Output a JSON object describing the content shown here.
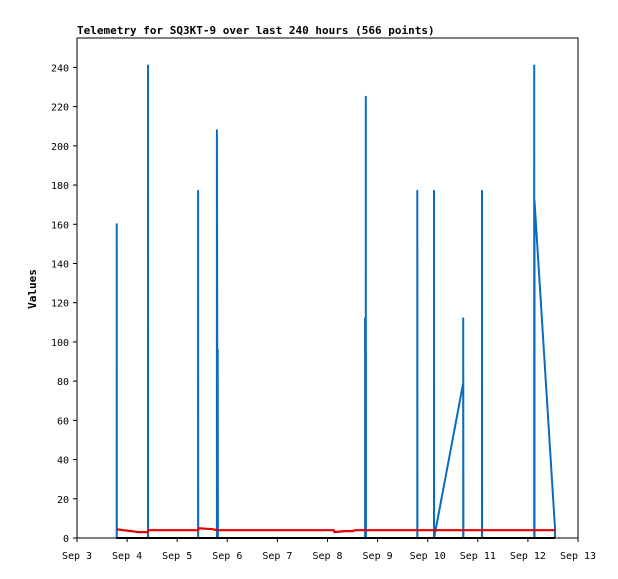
{
  "chart_data": {
    "type": "line",
    "title": "Telemetry for SQ3KT-9 over last 240 hours (566 points)",
    "xlabel": "",
    "ylabel": "Values",
    "x_ticks": [
      "Sep 3",
      "Sep 4",
      "Sep 5",
      "Sep 6",
      "Sep 7",
      "Sep 8",
      "Sep 9",
      "Sep 10",
      "Sep 11",
      "Sep 12",
      "Sep 13"
    ],
    "y_ticks": [
      "0",
      "20",
      "40",
      "60",
      "80",
      "100",
      "120",
      "140",
      "160",
      "180",
      "200",
      "220",
      "240"
    ],
    "xlim": [
      "Sep 3 00:00",
      "Sep 13 00:00"
    ],
    "ylim": [
      0,
      255
    ],
    "grid": false,
    "colors": {
      "blue_series": "#0b6bbd",
      "red_series": "#e00000",
      "black_series": "#000000",
      "frame": "#000000"
    },
    "series": [
      {
        "color": "#0b6bbd",
        "points": [
          [
            "Sep 3 19:00",
            0
          ],
          [
            "Sep 3 19:00",
            160
          ],
          [
            "Sep 3 19:05",
            0
          ],
          [
            "Sep 4 10:00",
            0
          ],
          [
            "Sep 4 10:00",
            241
          ],
          [
            "Sep 4 10:05",
            0
          ],
          [
            "Sep 5 10:00",
            0
          ],
          [
            "Sep 5 10:00",
            177
          ],
          [
            "Sep 5 10:05",
            0
          ],
          [
            "Sep 5 19:00",
            0
          ],
          [
            "Sep 5 19:00",
            208
          ],
          [
            "Sep 5 19:20",
            0
          ],
          [
            "Sep 5 19:25",
            0
          ],
          [
            "Sep 5 19:25",
            96
          ],
          [
            "Sep 5 19:30",
            0
          ],
          [
            "Sep 8 18:00",
            0
          ],
          [
            "Sep 8 18:00",
            112
          ],
          [
            "Sep 8 18:10",
            0
          ],
          [
            "Sep 8 18:20",
            0
          ],
          [
            "Sep 8 18:20",
            225
          ],
          [
            "Sep 8 18:25",
            0
          ],
          [
            "Sep 9 19:00",
            0
          ],
          [
            "Sep 9 19:00",
            177
          ],
          [
            "Sep 9 19:05",
            0
          ],
          [
            "Sep 10 03:00",
            0
          ],
          [
            "Sep 10 03:00",
            177
          ],
          [
            "Sep 10 03:05",
            0
          ],
          [
            "Sep 10 17:00",
            79
          ],
          [
            "Sep 10 17:00",
            0
          ],
          [
            "Sep 10 17:00",
            112
          ],
          [
            "Sep 10 17:05",
            0
          ],
          [
            "Sep 11 02:00",
            0
          ],
          [
            "Sep 11 02:00",
            177
          ],
          [
            "Sep 11 02:05",
            0
          ],
          [
            "Sep 12 03:00",
            0
          ],
          [
            "Sep 12 03:00",
            241
          ],
          [
            "Sep 12 03:05",
            0
          ],
          [
            "Sep 12 03:10",
            0
          ],
          [
            "Sep 12 03:10",
            172
          ],
          [
            "Sep 12 13:00",
            5
          ],
          [
            "Sep 12 13:00",
            0
          ]
        ]
      },
      {
        "color": "#e00000",
        "points": [
          [
            "Sep 3 19:00",
            4.5
          ],
          [
            "Sep 3 22:00",
            4
          ],
          [
            "Sep 4 02:00",
            3.5
          ],
          [
            "Sep 4 05:00",
            3
          ],
          [
            "Sep 4 10:00",
            3
          ],
          [
            "Sep 4 10:10",
            4
          ],
          [
            "Sep 5 10:00",
            4
          ],
          [
            "Sep 5 10:10",
            5
          ],
          [
            "Sep 5 17:00",
            4.5
          ],
          [
            "Sep 5 19:00",
            4
          ],
          [
            "Sep 8 03:00",
            4
          ],
          [
            "Sep 8 03:20",
            3
          ],
          [
            "Sep 8 08:00",
            3.5
          ],
          [
            "Sep 8 12:00",
            3.5
          ],
          [
            "Sep 8 13:00",
            4
          ],
          [
            "Sep 12 13:00",
            4
          ]
        ]
      },
      {
        "color": "#000000",
        "points": [
          [
            "Sep 3 19:00",
            0
          ],
          [
            "Sep 12 13:00",
            0
          ]
        ]
      }
    ]
  }
}
